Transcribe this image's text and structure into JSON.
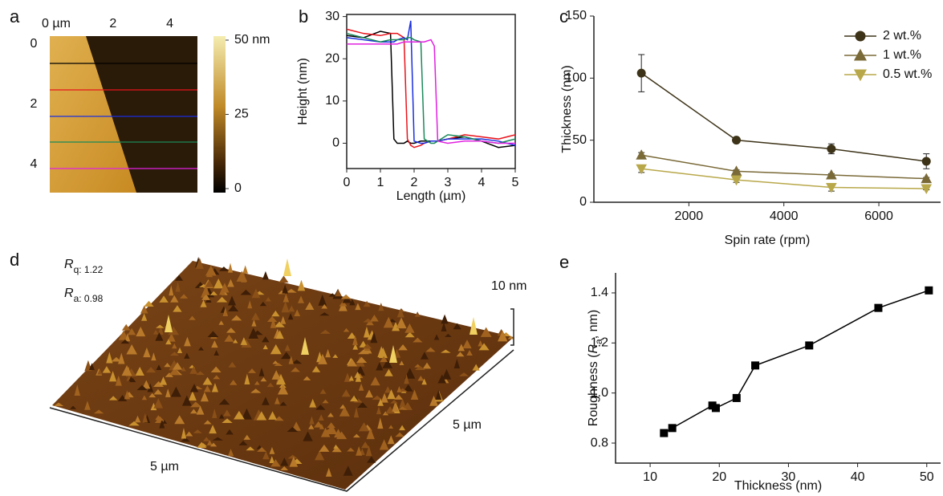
{
  "chart_data": [
    {
      "type": "image",
      "panel": "a",
      "xlim": [
        0,
        5
      ],
      "xticks": [
        {
          "value": 0,
          "label": "0 µm"
        },
        2,
        4
      ],
      "ylim": [
        0,
        5
      ],
      "yticks": [
        0,
        2,
        4
      ],
      "clim": [
        0,
        50
      ],
      "cticks": [
        {
          "value": 50,
          "label": "50 nm"
        },
        25,
        0
      ]
    },
    {
      "type": "line",
      "panel": "b",
      "x": [
        0,
        0.5,
        1,
        1.3,
        1.4,
        1.5,
        1.7,
        1.8,
        1.9,
        2.0,
        2.2,
        2.3,
        2.5,
        2.6,
        2.7,
        3,
        3.5,
        4,
        4.5,
        5
      ],
      "series": [
        {
          "color": "#000000",
          "values": [
            25.5,
            25,
            26.5,
            26,
            1,
            0,
            0,
            0.5,
            0,
            0,
            0.5,
            0.5,
            0.5,
            0.5,
            0.5,
            1,
            1.5,
            0.5,
            -1,
            -0.5
          ]
        },
        {
          "color": "#e8141c",
          "values": [
            27,
            26,
            25.5,
            26,
            26,
            26,
            25,
            1,
            -0.5,
            -1,
            -0.5,
            0,
            0.5,
            0.5,
            0.5,
            1,
            2,
            1.5,
            1,
            2
          ]
        },
        {
          "color": "#1a2fe0",
          "values": [
            25,
            24.5,
            24,
            24,
            24,
            24.5,
            25,
            24.5,
            29,
            0.5,
            0,
            0,
            0.5,
            0.5,
            0.5,
            1,
            1,
            1,
            0.5,
            -0.5
          ]
        },
        {
          "color": "#1a8a5a",
          "values": [
            26,
            25,
            24,
            24.5,
            24.5,
            24.5,
            24.5,
            25,
            25,
            24.5,
            24,
            1,
            0,
            0,
            0.5,
            2,
            1.5,
            0.5,
            0,
            1
          ]
        },
        {
          "color": "#e020e0",
          "values": [
            23.5,
            23.5,
            23.5,
            23.5,
            23.5,
            23.5,
            24,
            24,
            24,
            24,
            24,
            24,
            24.5,
            23,
            0.5,
            0,
            0.5,
            0.5,
            0,
            0
          ]
        }
      ],
      "xlim": [
        0,
        5
      ],
      "xticks": [
        0,
        1,
        2,
        3,
        4,
        5
      ],
      "ylim": [
        -6,
        30.5
      ],
      "yticks": [
        0,
        10,
        20,
        30
      ],
      "x_label": "Length (µm)",
      "y_label": "Height (nm)",
      "frame": true
    },
    {
      "type": "line",
      "panel": "c",
      "x": [
        1000,
        3000,
        5000,
        7000
      ],
      "series": [
        {
          "name": "2 wt.%",
          "color": "#3d3318",
          "marker": "circle",
          "values": [
            104,
            50,
            43,
            33
          ],
          "errors": [
            15,
            1,
            4,
            6
          ]
        },
        {
          "name": "1 wt.%",
          "color": "#7a6a38",
          "marker": "triangle-up",
          "values": [
            38,
            25,
            22,
            19
          ],
          "errors": [
            2,
            1,
            1,
            1
          ]
        },
        {
          "name": "0.5 wt.%",
          "color": "#b8a84a",
          "marker": "triangle-down",
          "values": [
            27,
            18,
            12,
            11
          ],
          "errors": [
            3,
            2,
            3,
            1
          ]
        }
      ],
      "xlim": [
        0,
        7300
      ],
      "xticks": [
        2000,
        4000,
        6000
      ],
      "ylim": [
        0,
        150
      ],
      "yticks": [
        0,
        50,
        100,
        150
      ],
      "x_label": "Spin rate (rpm)",
      "y_label": "Thickness (nm)",
      "legend": "upper right",
      "frame": false
    },
    {
      "type": "surface",
      "panel": "d",
      "annotations": [
        [
          "R",
          "q",
          ": 1.22"
        ],
        [
          "R",
          "a",
          ": 0.98"
        ]
      ],
      "z_label": "10 nm",
      "x_label": "5 µm",
      "y_label": "5 µm"
    },
    {
      "type": "line",
      "panel": "e",
      "x": [
        12,
        13.2,
        19,
        19.5,
        22.5,
        25.2,
        33,
        43,
        50.3
      ],
      "series": [
        {
          "color": "#000000",
          "marker": "square",
          "values": [
            0.84,
            0.86,
            0.95,
            0.94,
            0.98,
            1.11,
            1.19,
            1.34,
            1.41
          ]
        }
      ],
      "xlim": [
        5,
        52
      ],
      "xticks": [
        10,
        20,
        30,
        40,
        50
      ],
      "ylim": [
        0.72,
        1.48
      ],
      "yticks": [
        0.8,
        {
          "value": 1,
          "label": "1.0"
        },
        1.2,
        1.4
      ],
      "x_label": "Thickness (nm)",
      "y_label": [
        "Roughness (",
        "R",
        "a",
        ", nm)"
      ],
      "frame": false
    }
  ]
}
